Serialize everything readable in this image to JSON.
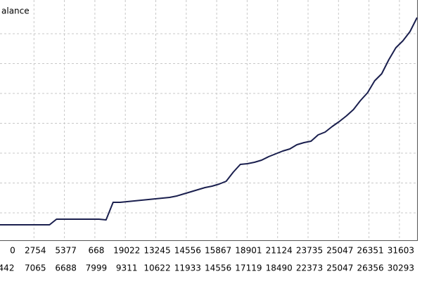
{
  "chart_data": {
    "type": "line",
    "title": "alance",
    "values": [
      22,
      22,
      22,
      22,
      22,
      22,
      22,
      22,
      30,
      30,
      30,
      30,
      30,
      30,
      30,
      29,
      54,
      54,
      55,
      56,
      57,
      58,
      59,
      60,
      61,
      63,
      66,
      69,
      72,
      75,
      77,
      80,
      84,
      97,
      108,
      109,
      111,
      114,
      119,
      123,
      127,
      130,
      136,
      139,
      141,
      150,
      154,
      162,
      169,
      177,
      186,
      199,
      210,
      227,
      237,
      257,
      274,
      284,
      297,
      317
    ],
    "ylim": [
      0,
      342
    ],
    "color": "#1a1f4e",
    "grid": true,
    "x_labels": {
      "top": [
        "0",
        "2754",
        "5377",
        "668",
        "19022",
        "13245",
        "14556",
        "15867",
        "18901",
        "21124",
        "23735",
        "25047",
        "26351",
        "31603"
      ],
      "bottom": [
        "442",
        "7065",
        "6688",
        "7999",
        "9311",
        "10622",
        "11933",
        "14556",
        "17119",
        "18490",
        "22373",
        "25047",
        "26356",
        "30293"
      ]
    }
  }
}
